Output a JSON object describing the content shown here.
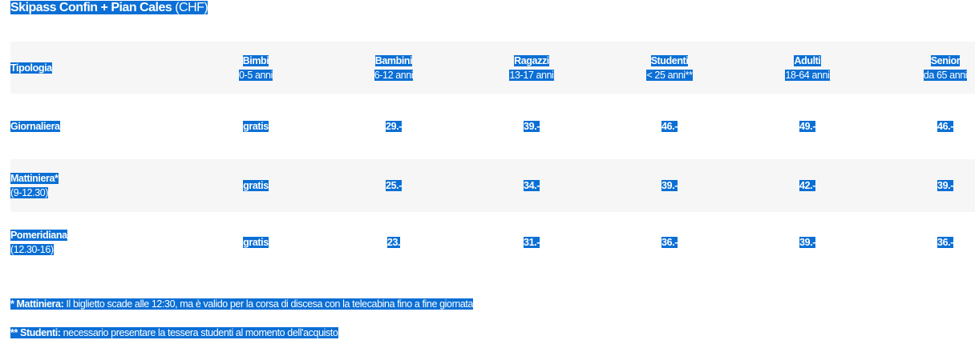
{
  "title": {
    "bold": "Skipass Confin + Pian Cales",
    "rest": " (CHF)"
  },
  "header": {
    "first": "Tipologia",
    "columns": [
      {
        "name": "Bimbi",
        "age": "0-5 anni"
      },
      {
        "name": "Bambini",
        "age": "6-12 anni"
      },
      {
        "name": "Ragazzi",
        "age": "13-17 anni"
      },
      {
        "name": "Studenti",
        "age": "< 25 anni**"
      },
      {
        "name": "Adulti",
        "age": "18-64 anni"
      },
      {
        "name": "Senior",
        "age": "da 65 anni"
      }
    ]
  },
  "rows": [
    {
      "name": "Giornaliera",
      "sub": "",
      "prices": [
        "gratis",
        "29.-",
        "39.-",
        "46.-",
        "49.-",
        "46.-"
      ]
    },
    {
      "name": "Mattiniera*",
      "sub": "(9-12.30)",
      "prices": [
        "gratis",
        "25.-",
        "34.-",
        "39.-",
        "42.-",
        "39.-"
      ]
    },
    {
      "name": "Pomeridiana",
      "sub": "(12.30-16)",
      "prices": [
        "gratis",
        "23.",
        "31.-",
        "36.-",
        "39.-",
        "36.-"
      ]
    }
  ],
  "notes": [
    {
      "bold": "* Mattiniera:",
      "text": " Il biglietto scade alle 12:30, ma è valido per la corsa di discesa con la telecabina fino a fine giornata"
    },
    {
      "bold": "** Studenti:",
      "text": " necessario presentare la tessera studenti al momento dell'acquisto"
    }
  ],
  "colors": {
    "selection": "#0b6fd5",
    "header_bg": "#f6f6f6"
  }
}
